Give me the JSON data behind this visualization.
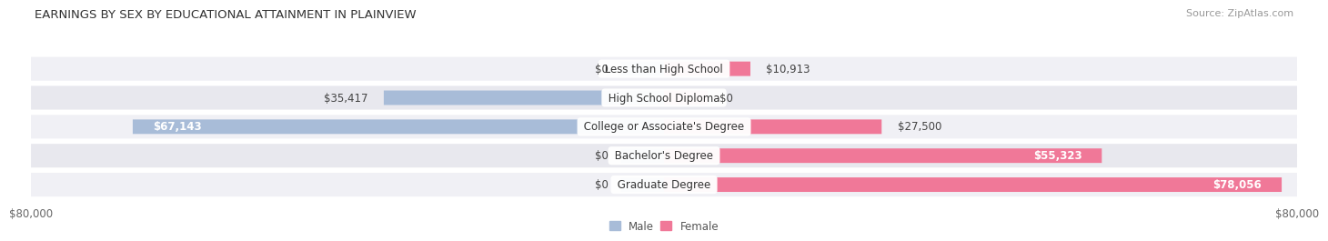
{
  "title": "EARNINGS BY SEX BY EDUCATIONAL ATTAINMENT IN PLAINVIEW",
  "source": "Source: ZipAtlas.com",
  "categories": [
    "Less than High School",
    "High School Diploma",
    "College or Associate's Degree",
    "Bachelor's Degree",
    "Graduate Degree"
  ],
  "male_values": [
    0,
    35417,
    67143,
    0,
    0
  ],
  "female_values": [
    10913,
    0,
    27500,
    55323,
    78056
  ],
  "male_color": "#a8bcd8",
  "female_color": "#f07898",
  "row_bg_colors": [
    "#f0f0f5",
    "#e8e8ee"
  ],
  "max_value": 80000,
  "x_labels_left": "$80,000",
  "x_labels_right": "$80,000",
  "legend_male": "Male",
  "legend_female": "Female",
  "title_fontsize": 9.5,
  "source_fontsize": 8.0,
  "label_fontsize": 8.5,
  "category_fontsize": 8.5,
  "stub_value": 5500
}
